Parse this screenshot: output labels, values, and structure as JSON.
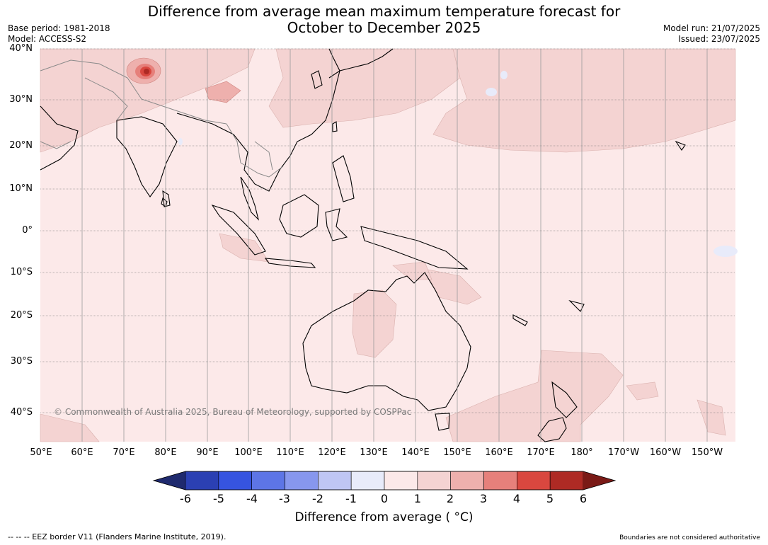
{
  "title_line1": "Difference from average mean maximum temperature forecast for",
  "title_line2": "October to December 2025",
  "base_period": "Base period: 1981-2018",
  "model": "Model: ACCESS-S2",
  "model_run": "Model run: 21/07/2025",
  "issued": "Issued: 23/07/2025",
  "lat_labels": [
    "40°N",
    "30°N",
    "20°N",
    "10°N",
    "0°",
    "10°S",
    "20°S",
    "30°S",
    "40°S"
  ],
  "lon_labels": [
    "50°E",
    "60°E",
    "70°E",
    "80°E",
    "90°E",
    "100°E",
    "110°E",
    "120°E",
    "130°E",
    "140°E",
    "150°E",
    "160°E",
    "170°E",
    "180°",
    "170°W",
    "160°W",
    "150°W"
  ],
  "copyright": "© Commonwealth of Australia 2025, Bureau of Meteorology, supported by COSPPac",
  "colorbar": {
    "ticks": [
      "-6",
      "-5",
      "-4",
      "-3",
      "-2",
      "-1",
      "0",
      "1",
      "2",
      "3",
      "4",
      "5",
      "6"
    ],
    "colors": [
      "#1f2a6e",
      "#2b40b3",
      "#3654e0",
      "#5d75e6",
      "#8797ee",
      "#bfc6f4",
      "#e8ebfa",
      "#fce9e9",
      "#f4d3d2",
      "#eeb0ad",
      "#e6807b",
      "#d9473f",
      "#ae2a24",
      "#7a1a16"
    ],
    "label": "Difference from average ( °C)"
  },
  "footer_left": "--  --  -- EEZ border V11 (Flanders Marine Institute, 2019).",
  "footer_right": "Boundaries are not considered authoritative",
  "icons": [
    "map-of-indo-pacific-region"
  ]
}
